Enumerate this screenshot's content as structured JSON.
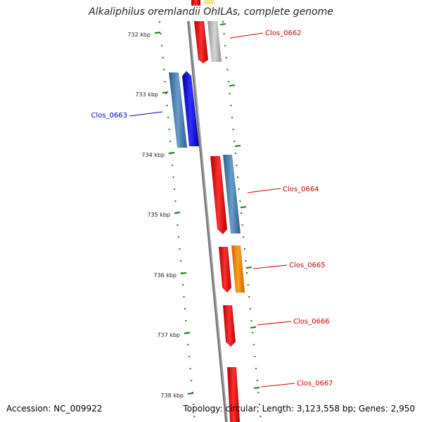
{
  "title": "Alkaliphilus oremlandii OhILAs, complete genome",
  "accession": "Accession: NC_009922",
  "summary": "Topology: circular; Length: 3,123,558 bp; Genes: 2,950",
  "ticks": [
    "732 kbp",
    "733 kbp",
    "734 kbp",
    "735 kbp",
    "736 kbp",
    "737 kbp",
    "738 kbp"
  ],
  "genes": [
    {
      "label": "Clos_0662",
      "color": "#cc0000"
    },
    {
      "label": "Clos_0663",
      "color": "#0000cc"
    },
    {
      "label": "Clos_0664",
      "color": "#cc0000"
    },
    {
      "label": "Clos_0665",
      "color": "#cc0000"
    },
    {
      "label": "Clos_0666",
      "color": "#cc0000"
    },
    {
      "label": "Clos_0667",
      "color": "#cc0000"
    }
  ],
  "colors": {
    "backbone": "#808080",
    "tick": "#1a7a1a",
    "cds_red": "#ff0000",
    "cds_blue": "#0000ff",
    "cds_steel": "#4f86b8",
    "cds_grey": "#c0c0c0",
    "cds_orange": "#ff8c00",
    "cds_yellow": "#f0e68c"
  }
}
